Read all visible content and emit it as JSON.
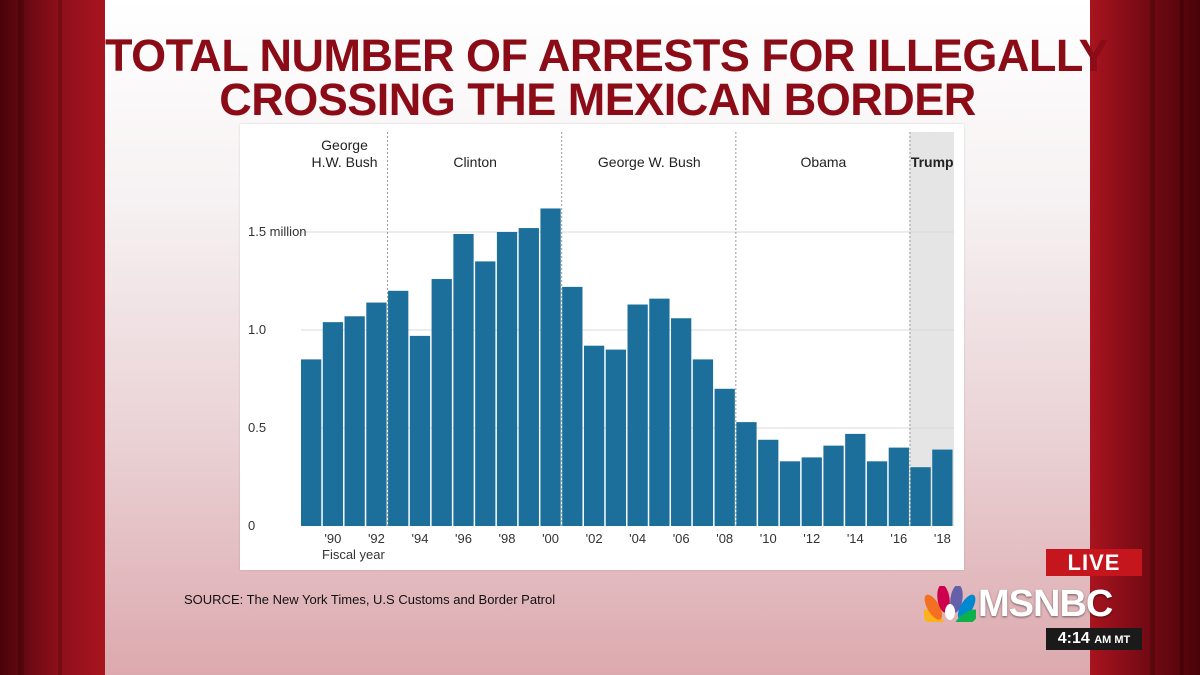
{
  "title": {
    "line1": "TOTAL NUMBER OF ARRESTS FOR ILLEGALLY",
    "line2": "CROSSING THE MEXICAN BORDER"
  },
  "source": "SOURCE: The New York Times, U.S Customs and Border Patrol",
  "broadcast": {
    "live": "LIVE",
    "network": "MSNBC",
    "time": "4:14",
    "zone": "AM MT"
  },
  "colors": {
    "bar": "#1b6f9a",
    "title": "#8b0b16",
    "trump_shade": "#e5e5e5",
    "live": "#c4161c"
  },
  "chart_data": {
    "type": "bar",
    "xlabel": "Fiscal year",
    "ylabel": "",
    "ylim": [
      0,
      1.7
    ],
    "yticks": [
      {
        "value": 0,
        "label": "0"
      },
      {
        "value": 0.5,
        "label": "0.5"
      },
      {
        "value": 1.0,
        "label": "1.0"
      },
      {
        "value": 1.5,
        "label": "1.5 million"
      }
    ],
    "years": [
      1989,
      1990,
      1991,
      1992,
      1993,
      1994,
      1995,
      1996,
      1997,
      1998,
      1999,
      2000,
      2001,
      2002,
      2003,
      2004,
      2005,
      2006,
      2007,
      2008,
      2009,
      2010,
      2011,
      2012,
      2013,
      2014,
      2015,
      2016,
      2017,
      2018
    ],
    "values": [
      0.85,
      1.04,
      1.07,
      1.14,
      1.2,
      0.97,
      1.26,
      1.49,
      1.35,
      1.5,
      1.52,
      1.62,
      1.22,
      0.92,
      0.9,
      1.13,
      1.16,
      1.06,
      0.85,
      0.7,
      0.53,
      0.44,
      0.33,
      0.35,
      0.41,
      0.47,
      0.33,
      0.4,
      0.3,
      0.39
    ],
    "xtick_labels": [
      {
        "year": 1990,
        "label": "'90"
      },
      {
        "year": 1992,
        "label": "'92"
      },
      {
        "year": 1994,
        "label": "'94"
      },
      {
        "year": 1996,
        "label": "'96"
      },
      {
        "year": 1998,
        "label": "'98"
      },
      {
        "year": 2000,
        "label": "'00"
      },
      {
        "year": 2002,
        "label": "'02"
      },
      {
        "year": 2004,
        "label": "'04"
      },
      {
        "year": 2006,
        "label": "'06"
      },
      {
        "year": 2008,
        "label": "'08"
      },
      {
        "year": 2010,
        "label": "'10"
      },
      {
        "year": 2012,
        "label": "'12"
      },
      {
        "year": 2014,
        "label": "'14"
      },
      {
        "year": 2016,
        "label": "'16"
      },
      {
        "year": 2018,
        "label": "'18"
      }
    ],
    "eras": [
      {
        "name": "George H.W. Bush",
        "lines": [
          "George",
          "H.W. Bush"
        ],
        "start": 1989,
        "end": 1992,
        "bold": false,
        "shaded": false
      },
      {
        "name": "Clinton",
        "lines": [
          "Clinton"
        ],
        "start": 1993,
        "end": 2000,
        "bold": false,
        "shaded": false
      },
      {
        "name": "George W. Bush",
        "lines": [
          "George W. Bush"
        ],
        "start": 2001,
        "end": 2008,
        "bold": false,
        "shaded": false
      },
      {
        "name": "Obama",
        "lines": [
          "Obama"
        ],
        "start": 2009,
        "end": 2016,
        "bold": false,
        "shaded": false
      },
      {
        "name": "Trump",
        "lines": [
          "Trump"
        ],
        "start": 2017,
        "end": 2018,
        "bold": true,
        "shaded": true
      }
    ],
    "grid": true,
    "legend": "none"
  }
}
